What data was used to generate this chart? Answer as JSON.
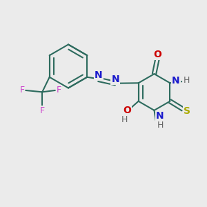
{
  "background_color": "#ebebeb",
  "bond_color": "#2d6b5e",
  "bond_width": 1.5,
  "text_colors": {
    "N": "#1a1acc",
    "O": "#cc0000",
    "S": "#aaaa00",
    "F": "#cc44cc",
    "H": "#666666",
    "C": "#2d6b5e"
  },
  "font_size": 10,
  "small_font_size": 9
}
